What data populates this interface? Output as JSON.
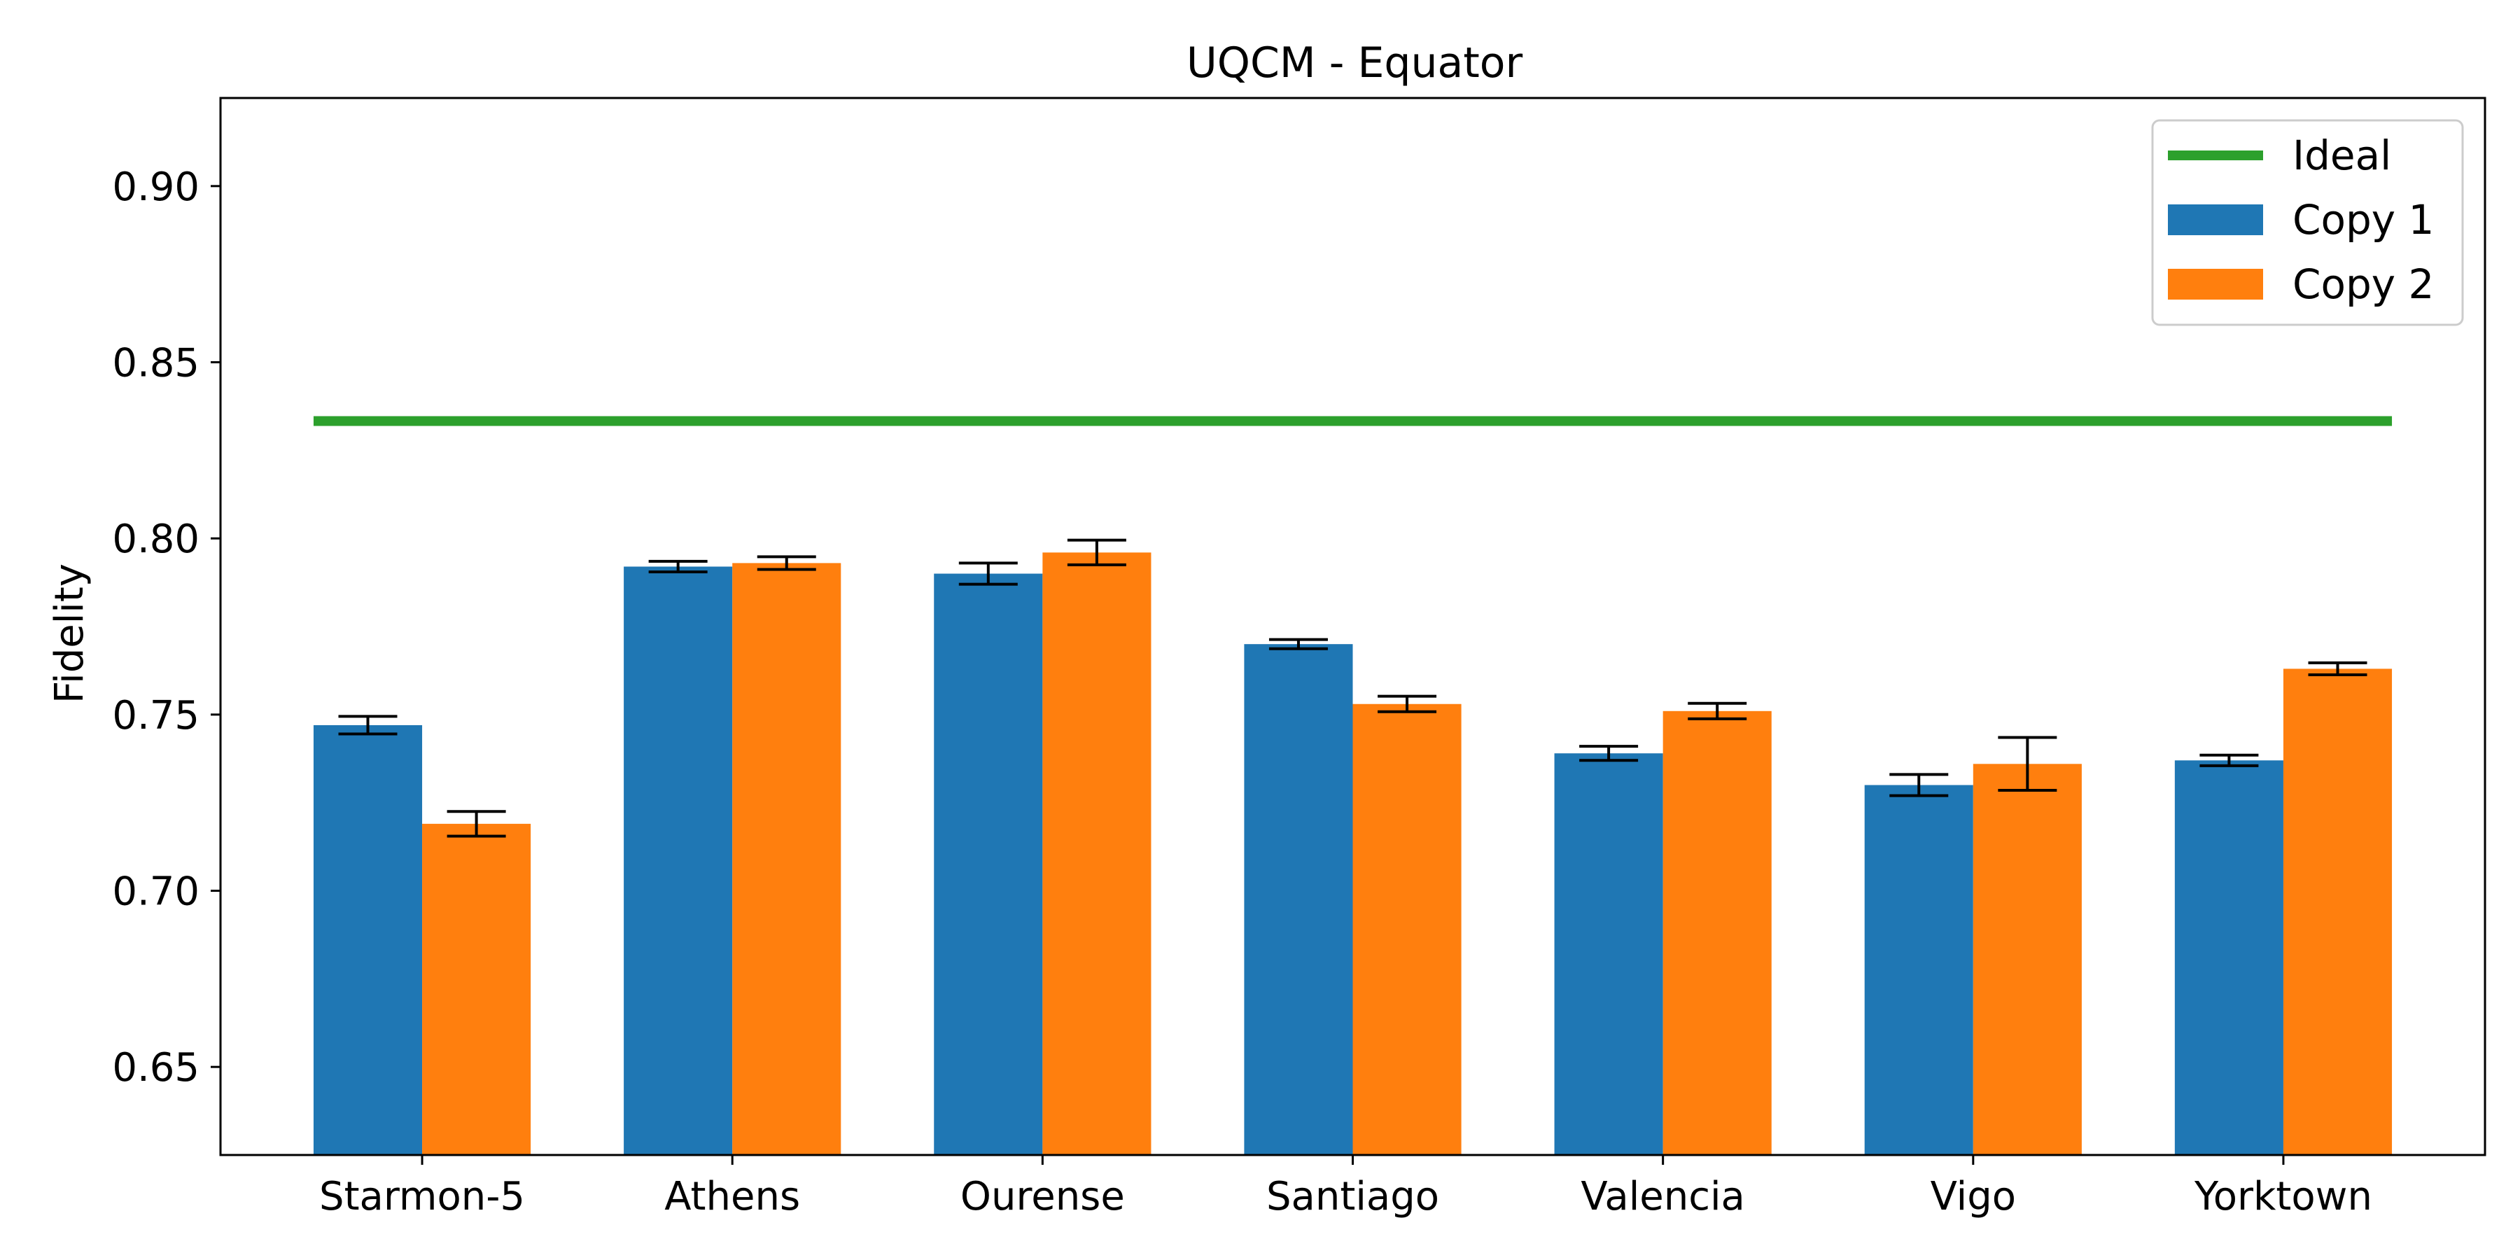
{
  "chart_data": {
    "type": "bar",
    "title": "UQCM - Equator",
    "xlabel": "",
    "ylabel": "Fidelity",
    "categories": [
      "Starmon-5",
      "Athens",
      "Ourense",
      "Santiago",
      "Valencia",
      "Vigo",
      "Yorktown"
    ],
    "ylim": [
      0.625,
      0.925
    ],
    "yticks": [
      "0.65",
      "0.70",
      "0.75",
      "0.80",
      "0.85",
      "0.90"
    ],
    "grid": false,
    "legend_position": "top-right",
    "ideal": {
      "name": "Ideal",
      "value": 0.8333,
      "color": "#2ca02c"
    },
    "series": [
      {
        "name": "Copy 1",
        "color": "#1f77b4",
        "values": [
          0.747,
          0.792,
          0.79,
          0.77,
          0.739,
          0.73,
          0.737
        ],
        "errors": [
          0.0025,
          0.0015,
          0.003,
          0.0013,
          0.002,
          0.003,
          0.0015
        ]
      },
      {
        "name": "Copy 2",
        "color": "#ff7f0e",
        "values": [
          0.719,
          0.793,
          0.796,
          0.753,
          0.751,
          0.736,
          0.763
        ],
        "errors": [
          0.0035,
          0.0018,
          0.0035,
          0.0022,
          0.0022,
          0.0075,
          0.0017
        ]
      }
    ]
  }
}
